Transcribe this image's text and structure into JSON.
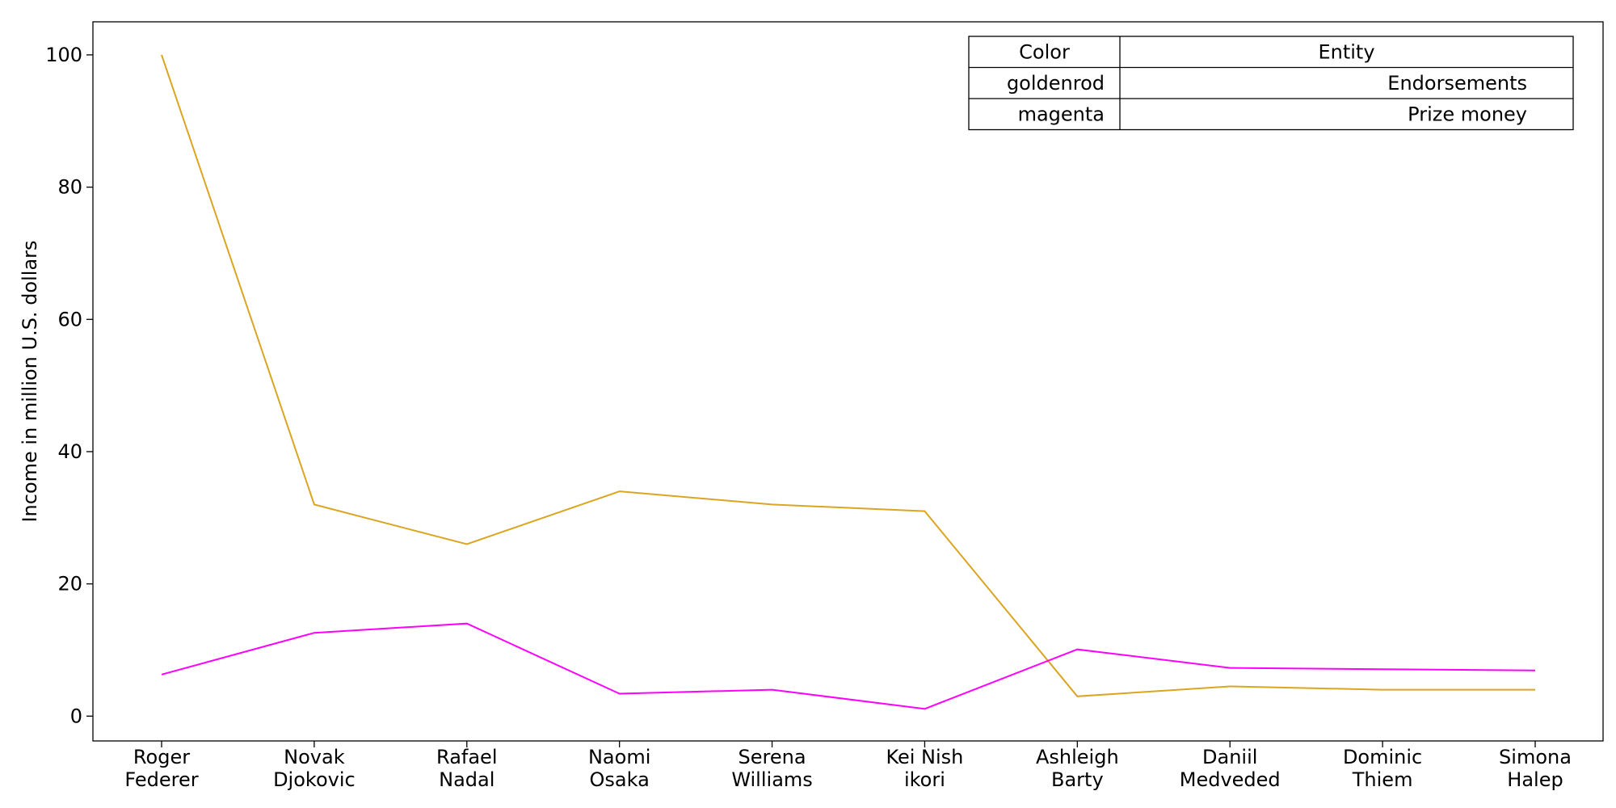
{
  "chart_data": {
    "type": "line",
    "title": "",
    "xlabel": "",
    "ylabel": "Income in million U.S. dollars",
    "categories": [
      [
        "Roger",
        "Federer"
      ],
      [
        "Novak",
        "Djokovic"
      ],
      [
        "Rafael",
        "Nadal"
      ],
      [
        "Naomi",
        "Osaka"
      ],
      [
        "Serena",
        "Williams"
      ],
      [
        "Kei Nish",
        "ikori"
      ],
      [
        "Ashleigh",
        "Barty"
      ],
      [
        "Daniil",
        "Medveded"
      ],
      [
        "Dominic",
        "Thiem"
      ],
      [
        "Simona",
        "Halep"
      ]
    ],
    "ylim": [
      -3.75,
      105
    ],
    "yticks": [
      0,
      20,
      40,
      60,
      80,
      100
    ],
    "grid": false,
    "legend_placement": "top-right",
    "series": [
      {
        "name": "Endorsements",
        "color": "#DAA520",
        "values": [
          100,
          32,
          26,
          34,
          32,
          31,
          3,
          4.5,
          4,
          4
        ]
      },
      {
        "name": "Prize money",
        "color": "#FF00FF",
        "values": [
          6.3,
          12.6,
          14,
          3.4,
          4,
          1.1,
          10.1,
          7.3,
          7.1,
          6.9
        ]
      }
    ],
    "legend_table": {
      "headers": [
        "Color",
        "Entity"
      ],
      "rows": [
        [
          "goldenrod",
          "Endorsements"
        ],
        [
          "magenta",
          "Prize money"
        ]
      ]
    }
  }
}
